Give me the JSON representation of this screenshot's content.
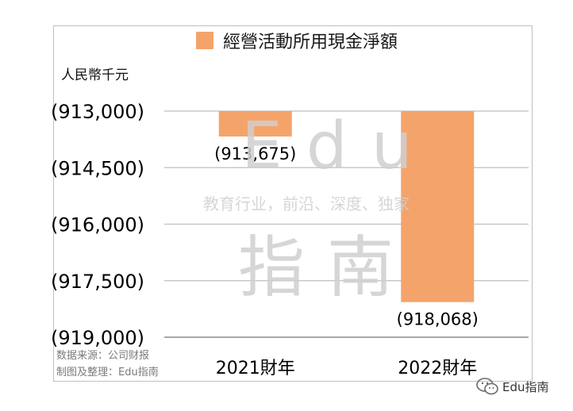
{
  "chart_data": {
    "type": "bar",
    "categories": [
      "2021財年",
      "2022財年"
    ],
    "series": [
      {
        "name": "經營活動所用現金淨額",
        "values": [
          -913675,
          -918068
        ],
        "color": "#F4A46A"
      }
    ],
    "data_labels": [
      "(913,675)",
      "(918,068)"
    ],
    "ylabel": "人民幣千元",
    "ylim": [
      -919000,
      -913000
    ],
    "yticks": [
      -913000,
      -914500,
      -916000,
      -917500,
      -919000
    ],
    "ytick_labels": [
      "(913,000)",
      "(914,500)",
      "(916,000)",
      "(917,500)",
      "(919,000)"
    ],
    "grid": true,
    "legend_position": "top-center",
    "bar_base": -913000
  },
  "source_note": [
    "数据来源：公司财报",
    "制图及整理：Edu指南"
  ],
  "watermark": {
    "latin": "Edu",
    "tagline": "教育行业，前沿、深度、独家",
    "cjk": "指南"
  },
  "brand": {
    "label": "Edu指南",
    "icon": "wechat-icon"
  },
  "colors": {
    "bar": "#F4A46A",
    "grid": "#bfbfbf",
    "axis": "#8a8a8a",
    "watermark": "#cfcfcf"
  }
}
